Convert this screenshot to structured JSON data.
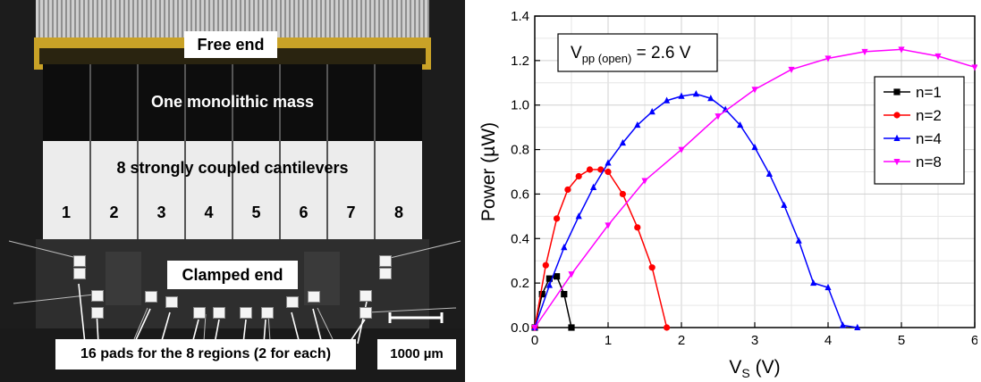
{
  "photo": {
    "free_end": "Free end",
    "mass": "One monolithic mass",
    "cantilevers": "8 strongly coupled cantilevers",
    "strip_numbers": [
      "1",
      "2",
      "3",
      "4",
      "5",
      "6",
      "7",
      "8"
    ],
    "clamped_end": "Clamped end",
    "pads_caption": "16 pads for the 8 regions (2 for each)",
    "scale_bar": "1000 µm",
    "colors": {
      "gold": "#c9a227",
      "mass": "#0d0d0d",
      "cantilever": "#ececec",
      "substrate": "#2a2a2a"
    }
  },
  "chart_data": {
    "type": "line",
    "xlabel_main": "V",
    "xlabel_sub": "S",
    "xlabel_unit": " (V)",
    "ylabel": "Power (µW)",
    "xlim": [
      0,
      6
    ],
    "ylim": [
      0,
      1.4
    ],
    "xticks": [
      "0",
      "1",
      "2",
      "3",
      "4",
      "5",
      "6"
    ],
    "yticks": [
      "0.0",
      "0.2",
      "0.4",
      "0.6",
      "0.8",
      "1.0",
      "1.2",
      "1.4"
    ],
    "grid": true,
    "legend_position": "top-right",
    "annotation": {
      "main": "V",
      "sub": "pp (open)",
      "rest": " = 2.6 V"
    },
    "series": [
      {
        "name": "n=1",
        "color": "#000000",
        "marker": "square",
        "x": [
          0,
          0.1,
          0.2,
          0.3,
          0.4,
          0.5
        ],
        "y": [
          0,
          0.15,
          0.22,
          0.23,
          0.15,
          0
        ]
      },
      {
        "name": "n=2",
        "color": "#ff0000",
        "marker": "circle",
        "x": [
          0,
          0.15,
          0.3,
          0.45,
          0.6,
          0.75,
          0.9,
          1.0,
          1.2,
          1.4,
          1.6,
          1.8
        ],
        "y": [
          0,
          0.28,
          0.49,
          0.62,
          0.68,
          0.71,
          0.71,
          0.7,
          0.6,
          0.45,
          0.27,
          0
        ]
      },
      {
        "name": "n=4",
        "color": "#0000ff",
        "marker": "triangle-up",
        "x": [
          0,
          0.2,
          0.4,
          0.6,
          0.8,
          1.0,
          1.2,
          1.4,
          1.6,
          1.8,
          2.0,
          2.2,
          2.4,
          2.6,
          2.8,
          3.0,
          3.2,
          3.4,
          3.6,
          3.8,
          4.0,
          4.2,
          4.4
        ],
        "y": [
          0,
          0.19,
          0.36,
          0.5,
          0.63,
          0.74,
          0.83,
          0.91,
          0.97,
          1.02,
          1.04,
          1.05,
          1.03,
          0.98,
          0.91,
          0.81,
          0.69,
          0.55,
          0.39,
          0.2,
          0.18,
          0.01,
          0
        ]
      },
      {
        "name": "n=8",
        "color": "#ff00ff",
        "marker": "triangle-down",
        "x": [
          0,
          0.5,
          1.0,
          1.5,
          2.0,
          2.5,
          3.0,
          3.5,
          4.0,
          4.5,
          5.0,
          5.5,
          6.0
        ],
        "y": [
          0,
          0.24,
          0.46,
          0.66,
          0.8,
          0.95,
          1.07,
          1.16,
          1.21,
          1.24,
          1.25,
          1.22,
          1.17
        ]
      }
    ]
  }
}
